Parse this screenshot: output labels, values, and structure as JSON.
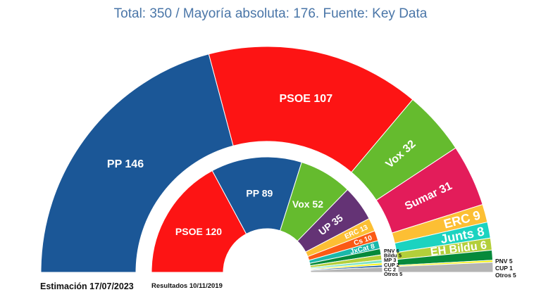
{
  "chart_data": {
    "type": "pie",
    "subtype": "parliament-half-donut",
    "title": "Total: 350 / Mayoría absoluta: 176. Fuente: Key Data",
    "total_seats": 350,
    "majority": 176,
    "rings": [
      {
        "name": "outer",
        "caption": "Estimación 17/07/2023",
        "parties": [
          {
            "name": "PP",
            "label": "PP 146",
            "seats": 146,
            "color": "#1b5797"
          },
          {
            "name": "PSOE",
            "label": "PSOE 107",
            "seats": 107,
            "color": "#fd1414"
          },
          {
            "name": "Vox",
            "label": "Vox 32",
            "seats": 32,
            "color": "#65bb2e"
          },
          {
            "name": "Sumar",
            "label": "Sumar 31",
            "seats": 31,
            "color": "#e31c5a"
          },
          {
            "name": "ERC",
            "label": "ERC 9",
            "seats": 9,
            "color": "#fcbf34"
          },
          {
            "name": "Junts",
            "label": "Junts 8",
            "seats": 8,
            "color": "#1bd3c0"
          },
          {
            "name": "EH Bildu",
            "label": "EH Bildu 6",
            "seats": 6,
            "color": "#b3cf3a"
          },
          {
            "name": "PNV",
            "label": "PNV 5",
            "seats": 5,
            "color": "#068a3b"
          },
          {
            "name": "CUP",
            "label": "CUP 1",
            "seats": 1,
            "color": "#fff200"
          },
          {
            "name": "Otros",
            "label": "Otros 5",
            "seats": 5,
            "color": "#b4b4b4"
          }
        ]
      },
      {
        "name": "inner",
        "caption": "Resultados 10/11/2019",
        "parties": [
          {
            "name": "PSOE",
            "label": "PSOE 120",
            "seats": 120,
            "color": "#fd1414"
          },
          {
            "name": "PP",
            "label": "PP 89",
            "seats": 89,
            "color": "#1b5797"
          },
          {
            "name": "Vox",
            "label": "Vox 52",
            "seats": 52,
            "color": "#65bb2e"
          },
          {
            "name": "UP",
            "label": "UP 35",
            "seats": 35,
            "color": "#643375"
          },
          {
            "name": "ERC",
            "label": "ERC 13",
            "seats": 13,
            "color": "#fcbf34"
          },
          {
            "name": "Cs",
            "label": "Cs 10",
            "seats": 10,
            "color": "#fb5a14"
          },
          {
            "name": "JxCat",
            "label": "JxCat 8",
            "seats": 8,
            "color": "#1bb8aa"
          },
          {
            "name": "PNV",
            "label": "PNV 6",
            "seats": 6,
            "color": "#068a3b"
          },
          {
            "name": "Bildu",
            "label": "Bildu 5",
            "seats": 5,
            "color": "#b3cf3a"
          },
          {
            "name": "MP",
            "label": "MP 3",
            "seats": 3,
            "color": "#7de3c4"
          },
          {
            "name": "CUP",
            "label": "CUP 2",
            "seats": 2,
            "color": "#fff200"
          },
          {
            "name": "CC",
            "label": "CC 2",
            "seats": 2,
            "color": "#1b5797"
          },
          {
            "name": "Otros",
            "label": "Otros 5",
            "seats": 5,
            "color": "#b4b4b4"
          }
        ]
      }
    ]
  }
}
